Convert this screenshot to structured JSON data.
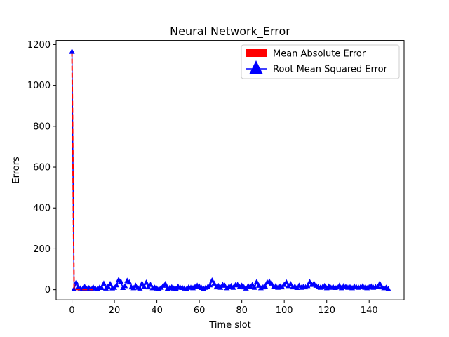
{
  "chart_data": {
    "type": "line",
    "title": "Neural Network_Error",
    "xlabel": "Time slot",
    "ylabel": "Errors",
    "xlim": [
      -7.45,
      156.45
    ],
    "ylim": [
      -50,
      1220
    ],
    "xticks": [
      0,
      20,
      40,
      60,
      80,
      100,
      120,
      140
    ],
    "yticks": [
      0,
      200,
      400,
      600,
      800,
      1000,
      1200
    ],
    "grid": false,
    "legend_position": "upper right",
    "series": [
      {
        "name": "Mean Absolute Error",
        "color": "#ff0000",
        "style": "dashed",
        "x": [
          0,
          1,
          2,
          3,
          4,
          5,
          6,
          7,
          8,
          9,
          10
        ],
        "y": [
          1165,
          3,
          2,
          1,
          2,
          1,
          2,
          1,
          2,
          1,
          1
        ]
      },
      {
        "name": "Root Mean Squared Error",
        "color": "#0000ff",
        "marker": "triangle",
        "x": [
          0,
          1,
          2,
          3,
          4,
          5,
          6,
          7,
          8,
          9,
          10,
          11,
          12,
          13,
          14,
          15,
          16,
          17,
          18,
          19,
          20,
          21,
          22,
          23,
          24,
          25,
          26,
          27,
          28,
          29,
          30,
          31,
          32,
          33,
          34,
          35,
          36,
          37,
          38,
          39,
          40,
          41,
          42,
          43,
          44,
          45,
          46,
          47,
          48,
          49,
          50,
          51,
          52,
          53,
          54,
          55,
          56,
          57,
          58,
          59,
          60,
          61,
          62,
          63,
          64,
          65,
          66,
          67,
          68,
          69,
          70,
          71,
          72,
          73,
          74,
          75,
          76,
          77,
          78,
          79,
          80,
          81,
          82,
          83,
          84,
          85,
          86,
          87,
          88,
          89,
          90,
          91,
          92,
          93,
          94,
          95,
          96,
          97,
          98,
          99,
          100,
          101,
          102,
          103,
          104,
          105,
          106,
          107,
          108,
          109,
          110,
          111,
          112,
          113,
          114,
          115,
          116,
          117,
          118,
          119,
          120,
          121,
          122,
          123,
          124,
          125,
          126,
          127,
          128,
          129,
          130,
          131,
          132,
          133,
          134,
          135,
          136,
          137,
          138,
          139,
          140,
          141,
          142,
          143,
          144,
          145,
          146,
          147,
          148,
          149
        ],
        "y": [
          1165,
          4,
          35,
          10,
          6,
          3,
          14,
          5,
          8,
          4,
          12,
          6,
          3,
          10,
          9,
          30,
          6,
          15,
          28,
          7,
          10,
          22,
          48,
          40,
          9,
          18,
          44,
          36,
          12,
          8,
          20,
          10,
          6,
          30,
          14,
          35,
          12,
          24,
          8,
          10,
          6,
          4,
          10,
          20,
          28,
          5,
          8,
          12,
          6,
          4,
          15,
          10,
          9,
          6,
          3,
          12,
          10,
          8,
          14,
          20,
          16,
          9,
          5,
          10,
          14,
          22,
          45,
          30,
          12,
          18,
          10,
          24,
          20,
          8,
          16,
          18,
          10,
          22,
          24,
          14,
          20,
          12,
          6,
          18,
          16,
          24,
          10,
          38,
          20,
          8,
          12,
          16,
          36,
          40,
          30,
          14,
          18,
          10,
          16,
          12,
          24,
          36,
          18,
          28,
          12,
          16,
          9,
          20,
          10,
          14,
          12,
          18,
          38,
          24,
          30,
          20,
          14,
          10,
          12,
          18,
          8,
          16,
          10,
          14,
          9,
          12,
          20,
          8,
          18,
          14,
          10,
          12,
          8,
          16,
          12,
          10,
          14,
          18,
          10,
          8,
          12,
          16,
          10,
          14,
          14,
          30,
          12,
          8,
          10,
          4
        ]
      }
    ]
  }
}
